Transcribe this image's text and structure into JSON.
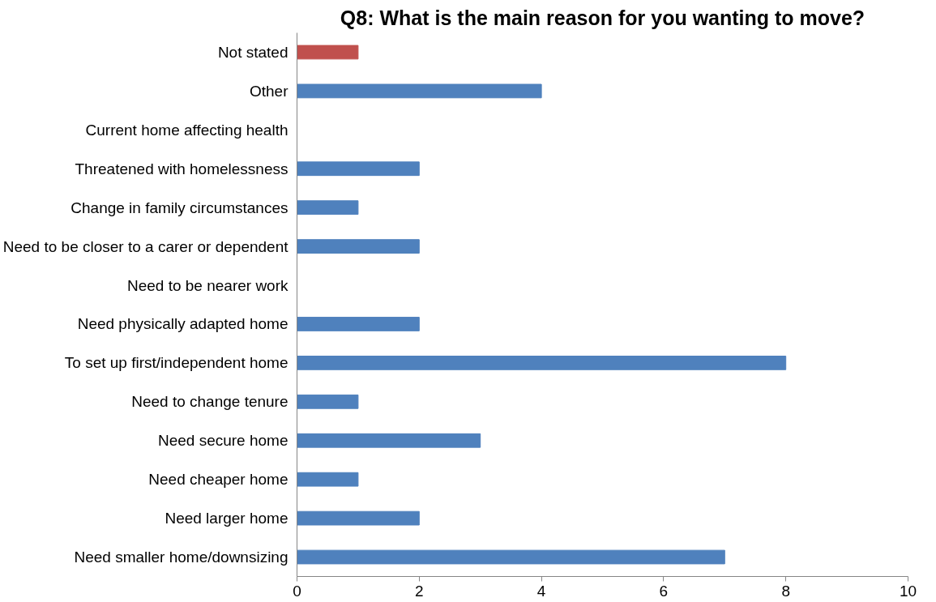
{
  "chart_data": {
    "type": "bar",
    "orientation": "horizontal",
    "title": "Q8: What is the main reason for you wanting to move?",
    "categories": [
      "Not stated",
      "Other",
      "Current home affecting health",
      "Threatened with homelessness",
      "Change in family circumstances",
      "Need to be closer to a carer or dependent",
      "Need to be nearer work",
      "Need physically adapted home",
      "To set up first/independent home",
      "Need to change tenure",
      "Need secure home",
      "Need cheaper home",
      "Need larger home",
      "Need smaller home/downsizing"
    ],
    "values": [
      1,
      4,
      0,
      2,
      1,
      2,
      0,
      2,
      8,
      1,
      3,
      1,
      2,
      7
    ],
    "colors": [
      "#c0504d",
      "#4f81bd",
      "#4f81bd",
      "#4f81bd",
      "#4f81bd",
      "#4f81bd",
      "#4f81bd",
      "#4f81bd",
      "#4f81bd",
      "#4f81bd",
      "#4f81bd",
      "#4f81bd",
      "#4f81bd",
      "#4f81bd"
    ],
    "xlim": [
      0,
      10
    ],
    "xticks": [
      0,
      2,
      4,
      6,
      8,
      10
    ],
    "grid": false
  }
}
